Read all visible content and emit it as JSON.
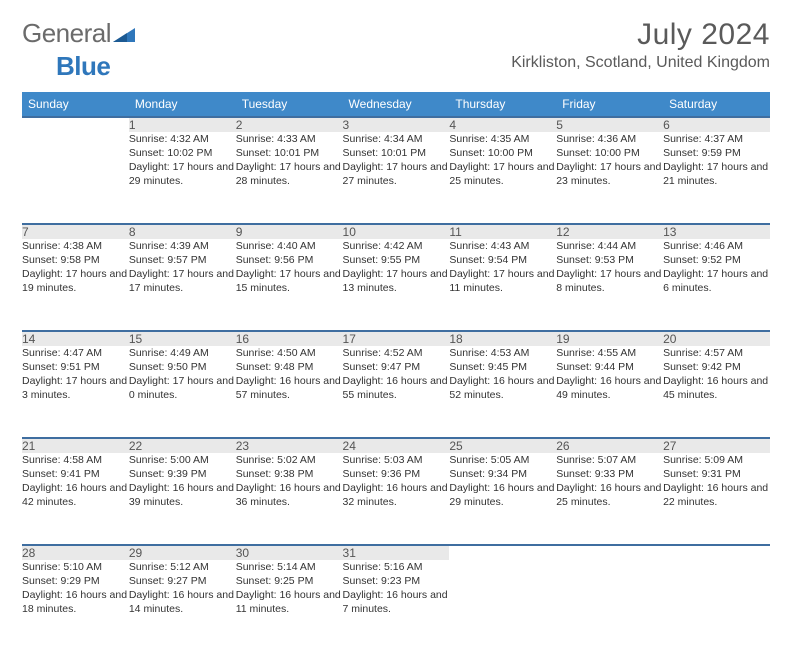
{
  "logo": {
    "part1": "General",
    "part2": "Blue"
  },
  "title": "July 2024",
  "location": "Kirkliston, Scotland, United Kingdom",
  "colors": {
    "header_bg": "#3f89c9",
    "header_text": "#ffffff",
    "row_border": "#3f6ea0",
    "daynum_bg": "#e9e9e9",
    "text": "#333333",
    "logo_gray": "#6b6b6b",
    "logo_blue": "#2f77bb"
  },
  "typography": {
    "title_fontsize": 30,
    "location_fontsize": 16,
    "dayhead_fontsize": 12,
    "cell_fontsize": 10.5
  },
  "weekdays": [
    "Sunday",
    "Monday",
    "Tuesday",
    "Wednesday",
    "Thursday",
    "Friday",
    "Saturday"
  ],
  "weeks": [
    [
      null,
      {
        "n": "1",
        "sr": "4:32 AM",
        "ss": "10:02 PM",
        "dl": "17 hours and 29 minutes."
      },
      {
        "n": "2",
        "sr": "4:33 AM",
        "ss": "10:01 PM",
        "dl": "17 hours and 28 minutes."
      },
      {
        "n": "3",
        "sr": "4:34 AM",
        "ss": "10:01 PM",
        "dl": "17 hours and 27 minutes."
      },
      {
        "n": "4",
        "sr": "4:35 AM",
        "ss": "10:00 PM",
        "dl": "17 hours and 25 minutes."
      },
      {
        "n": "5",
        "sr": "4:36 AM",
        "ss": "10:00 PM",
        "dl": "17 hours and 23 minutes."
      },
      {
        "n": "6",
        "sr": "4:37 AM",
        "ss": "9:59 PM",
        "dl": "17 hours and 21 minutes."
      }
    ],
    [
      {
        "n": "7",
        "sr": "4:38 AM",
        "ss": "9:58 PM",
        "dl": "17 hours and 19 minutes."
      },
      {
        "n": "8",
        "sr": "4:39 AM",
        "ss": "9:57 PM",
        "dl": "17 hours and 17 minutes."
      },
      {
        "n": "9",
        "sr": "4:40 AM",
        "ss": "9:56 PM",
        "dl": "17 hours and 15 minutes."
      },
      {
        "n": "10",
        "sr": "4:42 AM",
        "ss": "9:55 PM",
        "dl": "17 hours and 13 minutes."
      },
      {
        "n": "11",
        "sr": "4:43 AM",
        "ss": "9:54 PM",
        "dl": "17 hours and 11 minutes."
      },
      {
        "n": "12",
        "sr": "4:44 AM",
        "ss": "9:53 PM",
        "dl": "17 hours and 8 minutes."
      },
      {
        "n": "13",
        "sr": "4:46 AM",
        "ss": "9:52 PM",
        "dl": "17 hours and 6 minutes."
      }
    ],
    [
      {
        "n": "14",
        "sr": "4:47 AM",
        "ss": "9:51 PM",
        "dl": "17 hours and 3 minutes."
      },
      {
        "n": "15",
        "sr": "4:49 AM",
        "ss": "9:50 PM",
        "dl": "17 hours and 0 minutes."
      },
      {
        "n": "16",
        "sr": "4:50 AM",
        "ss": "9:48 PM",
        "dl": "16 hours and 57 minutes."
      },
      {
        "n": "17",
        "sr": "4:52 AM",
        "ss": "9:47 PM",
        "dl": "16 hours and 55 minutes."
      },
      {
        "n": "18",
        "sr": "4:53 AM",
        "ss": "9:45 PM",
        "dl": "16 hours and 52 minutes."
      },
      {
        "n": "19",
        "sr": "4:55 AM",
        "ss": "9:44 PM",
        "dl": "16 hours and 49 minutes."
      },
      {
        "n": "20",
        "sr": "4:57 AM",
        "ss": "9:42 PM",
        "dl": "16 hours and 45 minutes."
      }
    ],
    [
      {
        "n": "21",
        "sr": "4:58 AM",
        "ss": "9:41 PM",
        "dl": "16 hours and 42 minutes."
      },
      {
        "n": "22",
        "sr": "5:00 AM",
        "ss": "9:39 PM",
        "dl": "16 hours and 39 minutes."
      },
      {
        "n": "23",
        "sr": "5:02 AM",
        "ss": "9:38 PM",
        "dl": "16 hours and 36 minutes."
      },
      {
        "n": "24",
        "sr": "5:03 AM",
        "ss": "9:36 PM",
        "dl": "16 hours and 32 minutes."
      },
      {
        "n": "25",
        "sr": "5:05 AM",
        "ss": "9:34 PM",
        "dl": "16 hours and 29 minutes."
      },
      {
        "n": "26",
        "sr": "5:07 AM",
        "ss": "9:33 PM",
        "dl": "16 hours and 25 minutes."
      },
      {
        "n": "27",
        "sr": "5:09 AM",
        "ss": "9:31 PM",
        "dl": "16 hours and 22 minutes."
      }
    ],
    [
      {
        "n": "28",
        "sr": "5:10 AM",
        "ss": "9:29 PM",
        "dl": "16 hours and 18 minutes."
      },
      {
        "n": "29",
        "sr": "5:12 AM",
        "ss": "9:27 PM",
        "dl": "16 hours and 14 minutes."
      },
      {
        "n": "30",
        "sr": "5:14 AM",
        "ss": "9:25 PM",
        "dl": "16 hours and 11 minutes."
      },
      {
        "n": "31",
        "sr": "5:16 AM",
        "ss": "9:23 PM",
        "dl": "16 hours and 7 minutes."
      },
      null,
      null,
      null
    ]
  ],
  "labels": {
    "sunrise": "Sunrise: ",
    "sunset": "Sunset: ",
    "daylight": "Daylight: "
  }
}
